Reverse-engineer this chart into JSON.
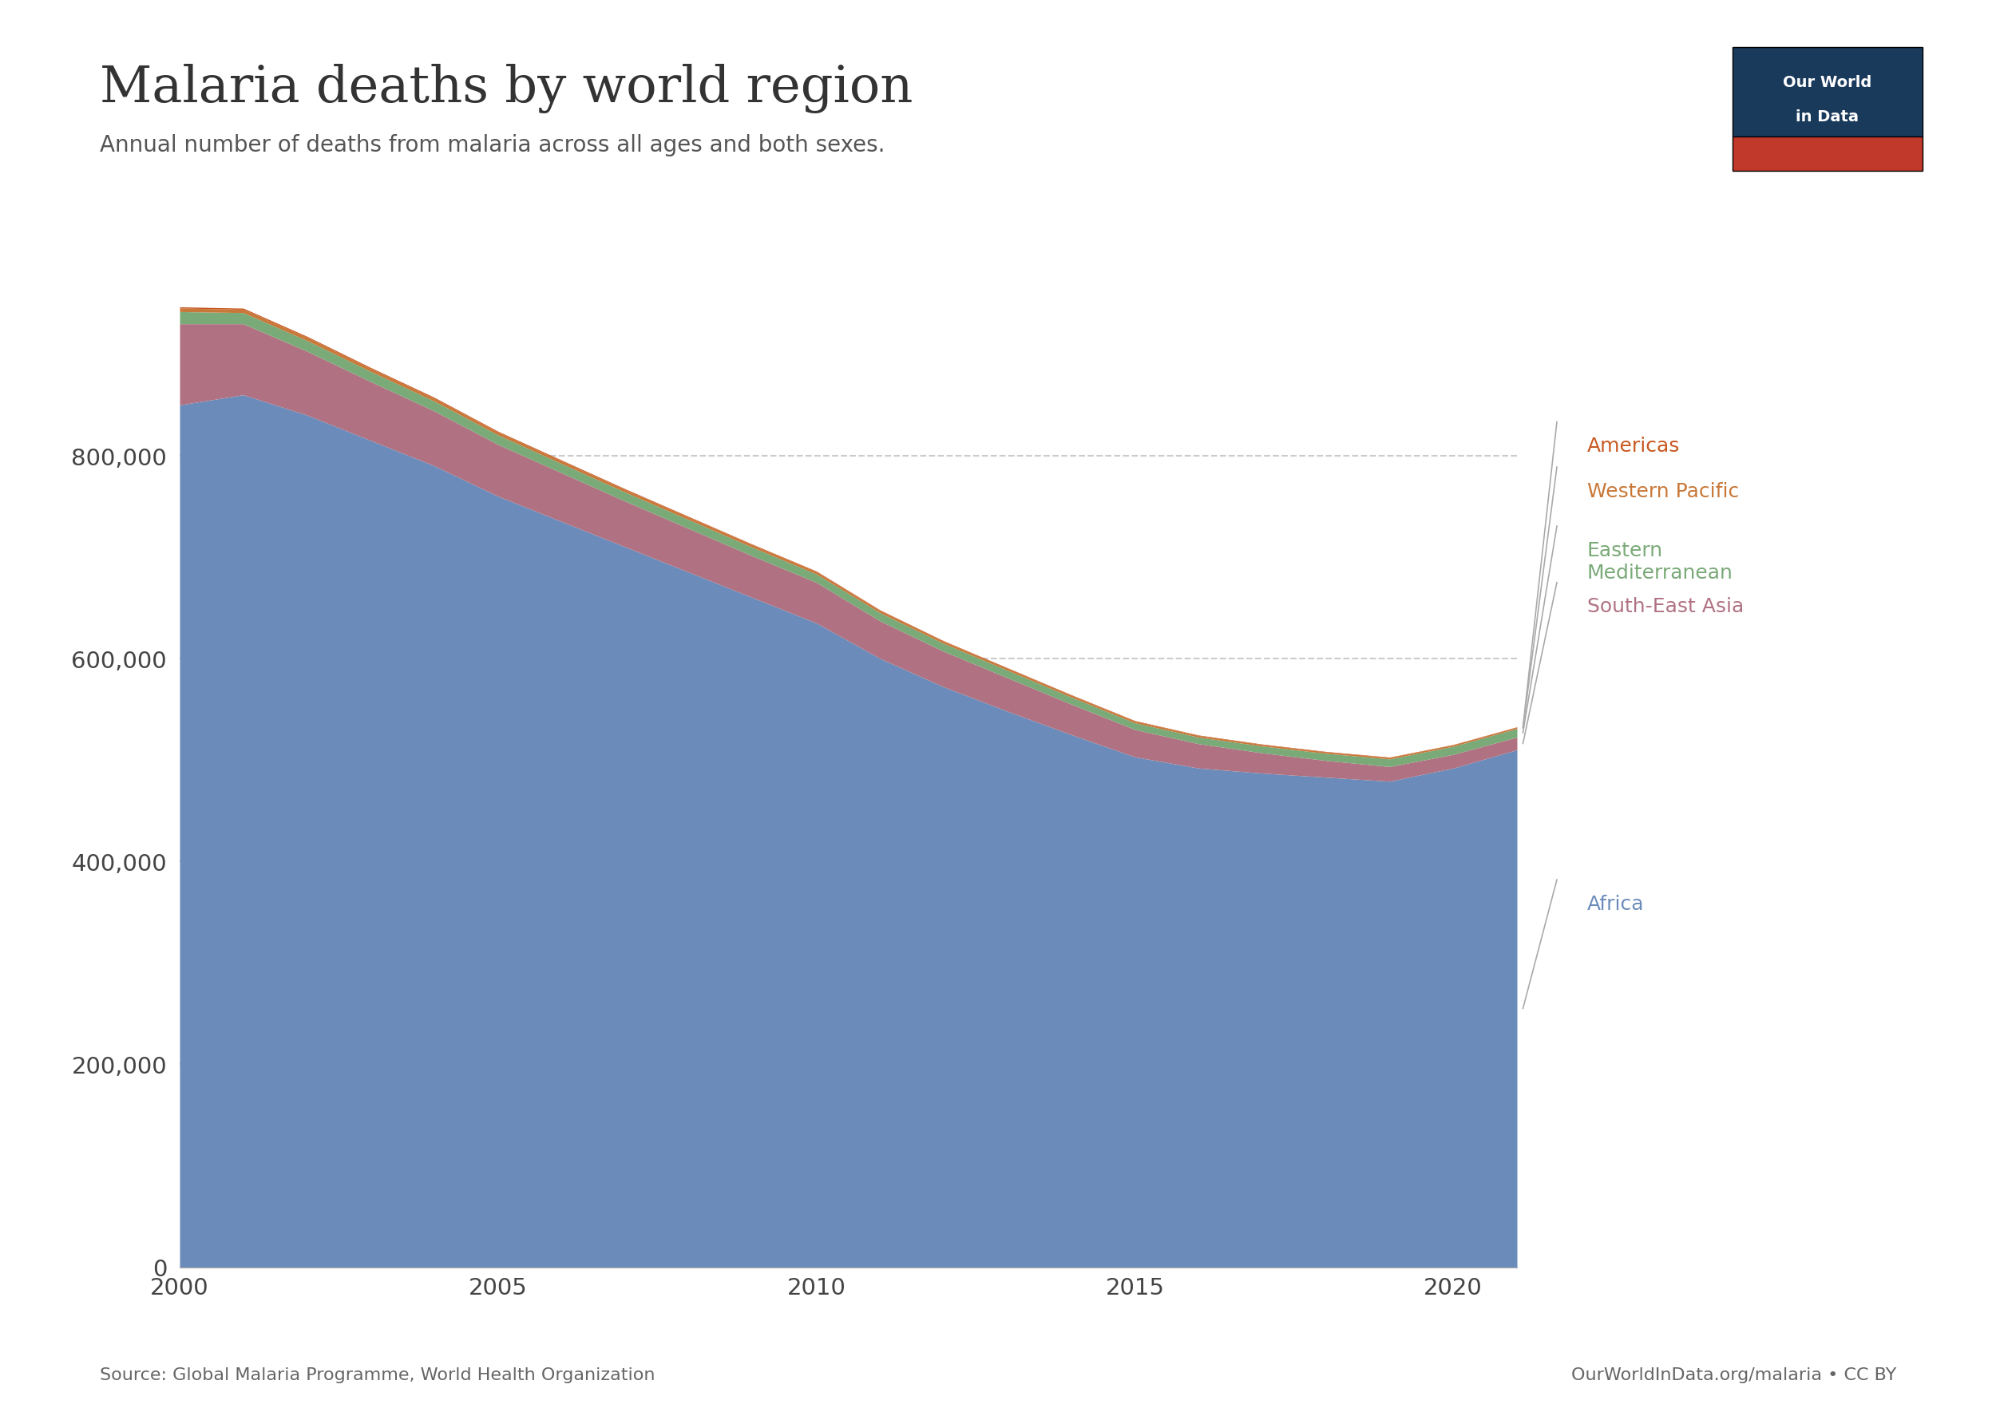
{
  "title": "Malaria deaths by world region",
  "subtitle": "Annual number of deaths from malaria across all ages and both sexes.",
  "source_left": "Source: Global Malaria Programme, World Health Organization",
  "source_right": "OurWorldInData.org/malaria • CC BY",
  "years": [
    2000,
    2001,
    2002,
    2003,
    2004,
    2005,
    2006,
    2007,
    2008,
    2009,
    2010,
    2011,
    2012,
    2013,
    2014,
    2015,
    2016,
    2017,
    2018,
    2019,
    2020,
    2021
  ],
  "africa": [
    850000,
    860000,
    840000,
    815000,
    790000,
    760000,
    735000,
    710000,
    685000,
    660000,
    635000,
    600000,
    572000,
    548000,
    525000,
    503000,
    492000,
    487000,
    483000,
    479000,
    492000,
    510000
  ],
  "south_east_asia": [
    80000,
    70000,
    63000,
    58000,
    54000,
    51000,
    48000,
    45000,
    43000,
    41000,
    40000,
    37000,
    35000,
    33000,
    30000,
    27000,
    24000,
    20000,
    16500,
    14500,
    13500,
    12500
  ],
  "eastern_mediterranean": [
    12000,
    11000,
    10500,
    10000,
    9700,
    9400,
    9100,
    8900,
    8700,
    8500,
    8300,
    8100,
    7800,
    7400,
    7000,
    6600,
    6500,
    6700,
    7000,
    7500,
    8000,
    8500
  ],
  "western_pacific": [
    3500,
    3300,
    3100,
    2900,
    2800,
    2700,
    2600,
    2500,
    2400,
    2300,
    2200,
    2100,
    2000,
    1900,
    1800,
    1700,
    1600,
    1500,
    1450,
    1400,
    1350,
    1300
  ],
  "americas": [
    1200,
    1100,
    1050,
    1000,
    950,
    900,
    850,
    800,
    760,
    720,
    680,
    640,
    600,
    560,
    530,
    500,
    470,
    450,
    430,
    410,
    390,
    370
  ],
  "colors": {
    "africa": "#6b8cba",
    "south_east_asia": "#b07282",
    "eastern_mediterranean": "#7aaa78",
    "western_pacific": "#c87838",
    "americas": "#c85820"
  },
  "ylim": [
    0,
    1000000
  ],
  "yticks": [
    0,
    200000,
    400000,
    600000,
    800000
  ],
  "background_color": "#ffffff",
  "logo_bg1": "#1a3a5c",
  "logo_bg2": "#c0392b"
}
